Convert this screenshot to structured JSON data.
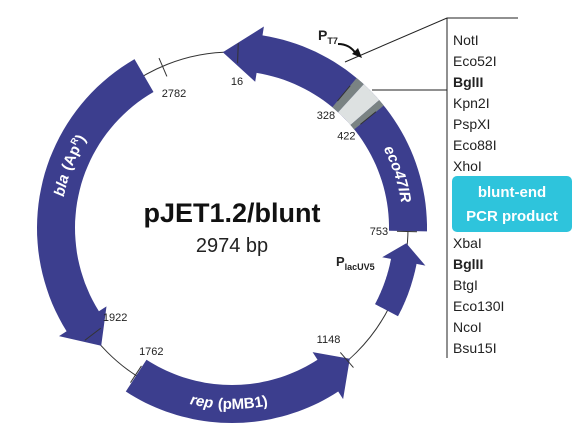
{
  "title": "pJET1.2/blunt",
  "size": "2974 bp",
  "features": {
    "bla": [
      "bla",
      "(Ap",
      "R",
      ")"
    ],
    "rep": [
      "rep",
      "(pMB1)"
    ],
    "eco": "eco47IR",
    "pt7": [
      "P",
      "T7"
    ],
    "plac": [
      "P",
      "lacUV5"
    ]
  },
  "positions": [
    16,
    328,
    422,
    753,
    1148,
    1762,
    1922,
    2782
  ],
  "sites_upper": [
    {
      "name": "NotI",
      "bold": false
    },
    {
      "name": "Eco52I",
      "bold": false
    },
    {
      "name": "BglII",
      "bold": true
    },
    {
      "name": "Kpn2I",
      "bold": false
    },
    {
      "name": "PspXI",
      "bold": false
    },
    {
      "name": "Eco88I",
      "bold": false
    },
    {
      "name": "XhoI",
      "bold": false
    }
  ],
  "insert": [
    "blunt-end",
    "PCR product"
  ],
  "sites_lower": [
    {
      "name": "XbaI",
      "bold": false
    },
    {
      "name": "BglII",
      "bold": true
    },
    {
      "name": "BtgI",
      "bold": false
    },
    {
      "name": "Eco130I",
      "bold": false
    },
    {
      "name": "NcoI",
      "bold": false
    },
    {
      "name": "Bsu15I",
      "bold": false
    }
  ]
}
